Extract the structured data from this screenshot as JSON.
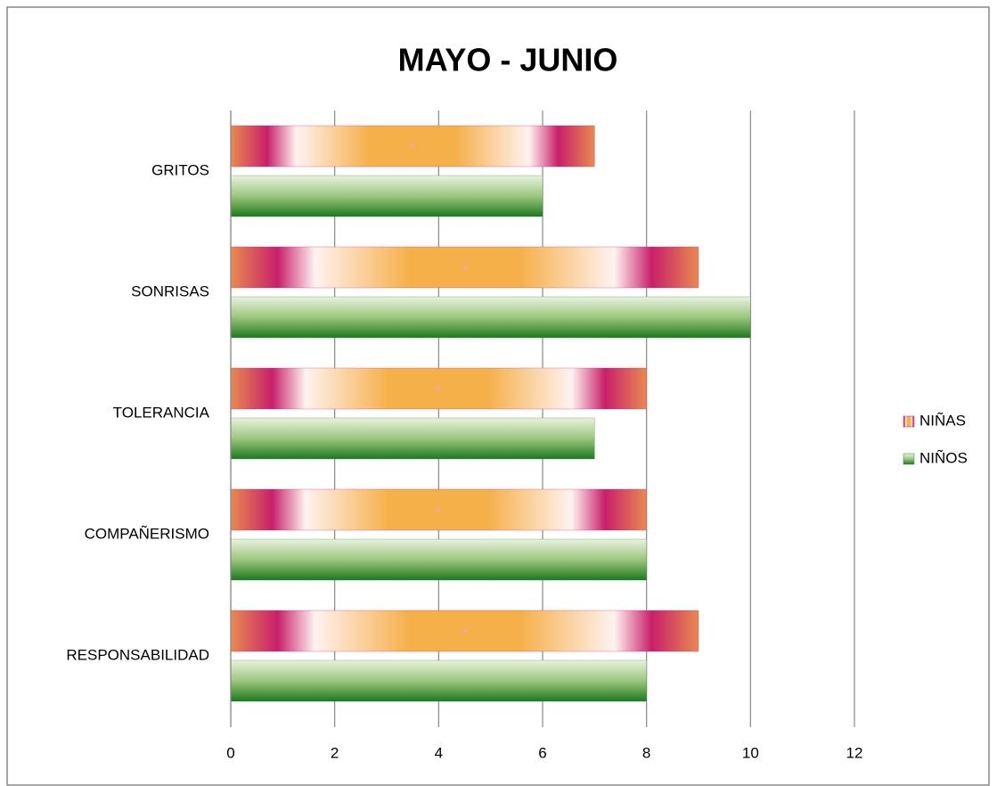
{
  "chart_data": {
    "type": "hbar",
    "title": "MAYO - JUNIO",
    "categories": [
      "GRITOS",
      "SONRISAS",
      "TOLERANCIA",
      "COMPAÑERISMO",
      "RESPONSABILIDAD"
    ],
    "series": [
      {
        "name": "NIÑAS",
        "color": "#c8206a",
        "values": [
          7,
          9,
          8,
          8,
          9
        ]
      },
      {
        "name": "NIÑOS",
        "color": "#2e8b2e",
        "values": [
          6,
          10,
          7,
          8,
          8
        ]
      }
    ],
    "xlim": [
      0,
      12
    ],
    "xticks": [
      0,
      2,
      4,
      6,
      8,
      10,
      12
    ],
    "grid": true,
    "legend": "right"
  }
}
